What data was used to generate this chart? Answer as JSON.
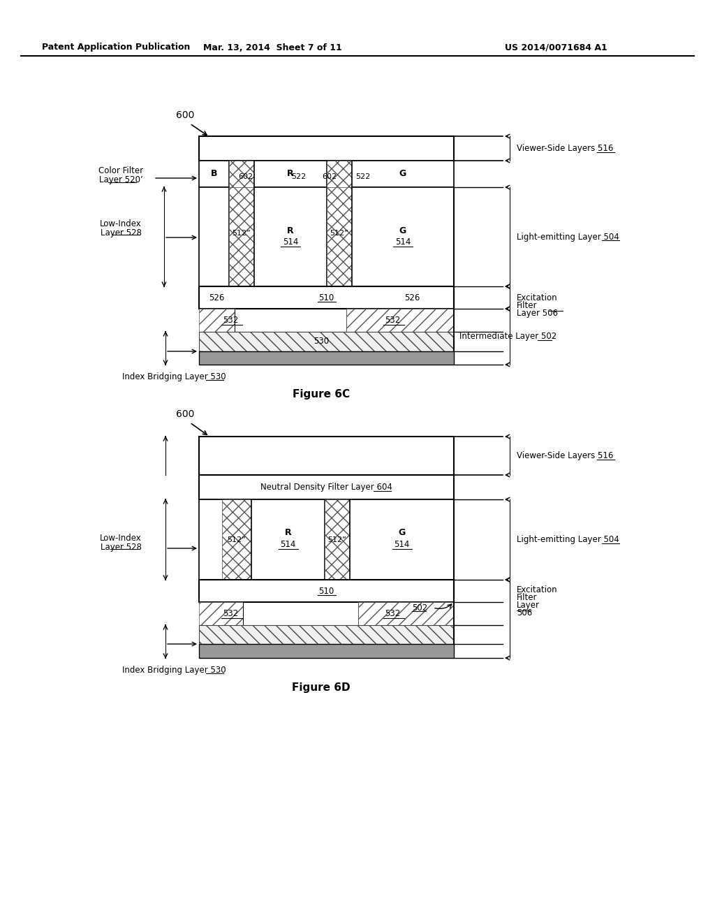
{
  "bg_color": "#ffffff",
  "header_left": "Patent Application Publication",
  "header_mid": "Mar. 13, 2014  Sheet 7 of 11",
  "header_right": "US 2014/0071684 A1",
  "fig6c_label": "Figure 6C",
  "fig6d_label": "Figure 6D",
  "gray_color": "#999999",
  "light_gray": "#cccccc"
}
